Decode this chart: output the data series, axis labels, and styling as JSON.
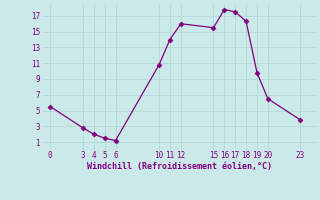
{
  "x": [
    0,
    3,
    4,
    5,
    6,
    10,
    11,
    12,
    15,
    16,
    17,
    18,
    19,
    20,
    23
  ],
  "y": [
    5.5,
    2.8,
    2.0,
    1.5,
    1.2,
    10.8,
    14.0,
    16.0,
    15.5,
    17.8,
    17.5,
    16.3,
    9.8,
    6.5,
    3.8
  ],
  "line_color": "#800080",
  "marker": "D",
  "marker_size": 2.5,
  "bg_color": "#cce9e9",
  "grid_color": "#b0d8d8",
  "xlabel": "Windchill (Refroidissement éolien,°C)",
  "xlabel_color": "#800080",
  "tick_color": "#800080",
  "yticks": [
    1,
    3,
    5,
    7,
    9,
    11,
    13,
    15,
    17
  ],
  "xticks": [
    0,
    3,
    4,
    5,
    6,
    10,
    11,
    12,
    15,
    16,
    17,
    18,
    19,
    20,
    23
  ],
  "ylim": [
    0.0,
    18.5
  ],
  "xlim": [
    -0.8,
    24.5
  ]
}
